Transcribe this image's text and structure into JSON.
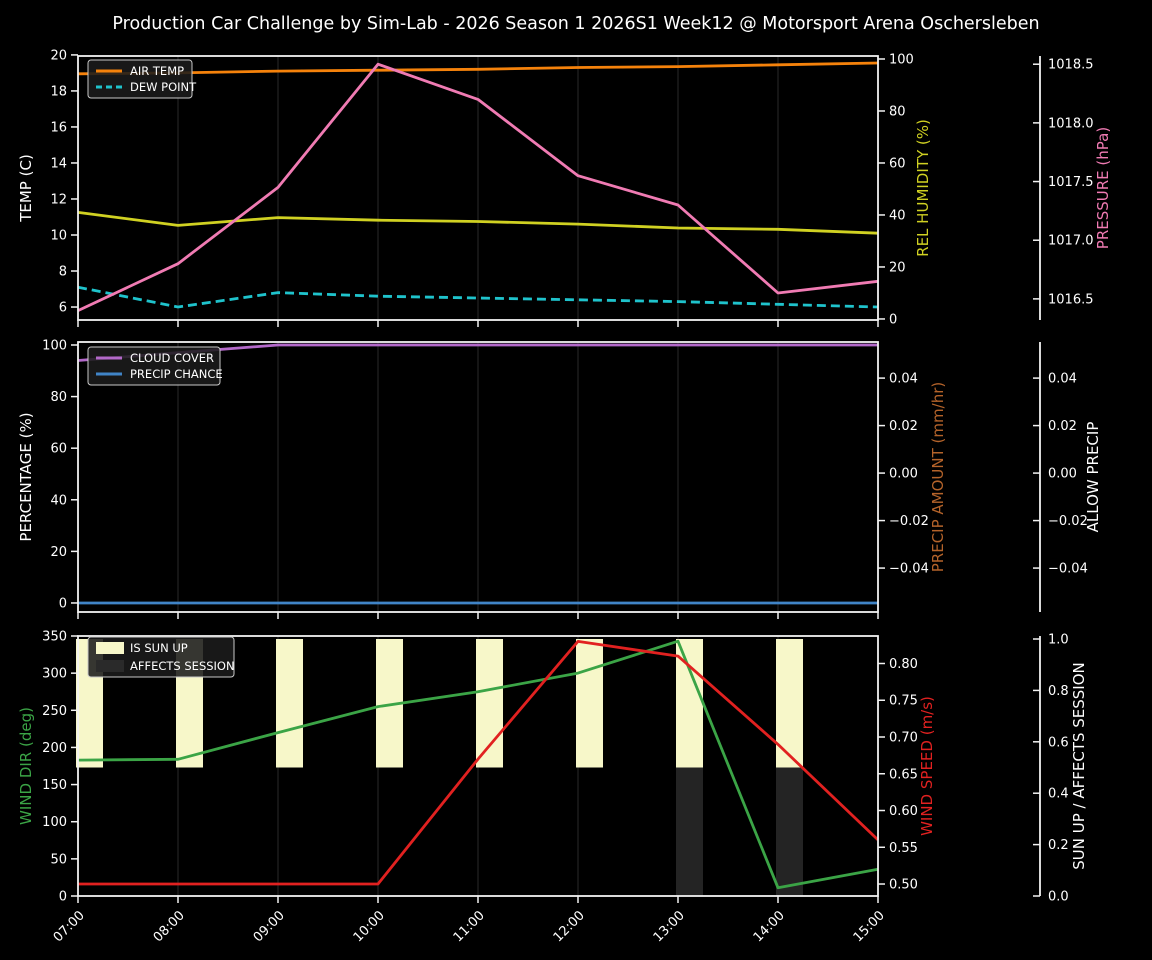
{
  "title": "Production Car Challenge by Sim-Lab - 2026 Season 1 2026S1 Week12 @ Motorsport Arena Oschersleben",
  "x_labels": [
    "07:00",
    "08:00",
    "09:00",
    "10:00",
    "11:00",
    "12:00",
    "13:00",
    "14:00",
    "15:00"
  ],
  "colors": {
    "background": "#000000",
    "text": "#ffffff",
    "grid": "#232323",
    "spine": "#f2f2f2",
    "air_temp": "#f5820b",
    "dew_point": "#1fc3cc",
    "rel_humidity": "#d0d122",
    "pressure": "#f07bb3",
    "cloud_cover": "#b369c9",
    "precip_chance": "#4084c7",
    "precip_amount": "#b4632a",
    "wind_dir": "#3ba446",
    "wind_speed": "#e12120",
    "sun_up_bar": "#f7f7c9",
    "affects_session_bar": "#242424"
  },
  "chart_data": [
    {
      "type": "line",
      "name": "temp-humidity-pressure",
      "categories": [
        "07:00",
        "08:00",
        "09:00",
        "10:00",
        "11:00",
        "12:00",
        "13:00",
        "14:00",
        "15:00"
      ],
      "series": [
        {
          "name": "AIR TEMP",
          "scale": "temp",
          "color": "#f5820b",
          "style": "solid",
          "values": [
            18.95,
            19.0,
            19.1,
            19.15,
            19.2,
            19.3,
            19.35,
            19.45,
            19.55
          ]
        },
        {
          "name": "DEW POINT",
          "scale": "temp",
          "color": "#1fc3cc",
          "style": "dashed",
          "values": [
            7.1,
            6.0,
            6.8,
            6.6,
            6.5,
            6.4,
            6.3,
            6.15,
            6.0
          ]
        },
        {
          "name": "REL HUMIDITY",
          "scale": "hum",
          "color": "#d0d122",
          "style": "solid",
          "values": [
            41,
            36,
            39,
            38,
            37.5,
            36.5,
            35,
            34.5,
            33
          ]
        },
        {
          "name": "PRESSURE",
          "scale": "press",
          "color": "#f07bb3",
          "style": "solid",
          "values": [
            1016.4,
            1016.8,
            1017.45,
            1018.5,
            1018.2,
            1017.55,
            1017.3,
            1016.55,
            1016.65
          ]
        }
      ],
      "axes": [
        {
          "scale": "temp",
          "side": "left",
          "label": "TEMP (C)",
          "label_color": "#ffffff",
          "ticks": [
            6,
            8,
            10,
            12,
            14,
            16,
            18,
            20
          ],
          "tick_labels": [
            "6",
            "8",
            "10",
            "12",
            "14",
            "16",
            "18",
            "20"
          ]
        },
        {
          "scale": "hum",
          "side": "right",
          "label": "REL HUMIDITY (%)",
          "label_color": "#d0d122",
          "ticks": [
            0,
            20,
            40,
            60,
            80,
            100
          ],
          "tick_labels": [
            "0",
            "20",
            "40",
            "60",
            "80",
            "100"
          ]
        },
        {
          "scale": "press",
          "side": "right2",
          "label": "PRESSURE (hPa)",
          "label_color": "#f07bb3",
          "ticks": [
            1016.5,
            1017.0,
            1017.5,
            1018.0,
            1018.5
          ],
          "tick_labels": [
            "1016.5",
            "1017.0",
            "1017.5",
            "1018.0",
            "1018.5"
          ]
        }
      ],
      "legend": [
        {
          "label": "AIR TEMP",
          "swatch": "line",
          "color": "#f5820b"
        },
        {
          "label": "DEW POINT",
          "swatch": "dashed-line",
          "color": "#1fc3cc"
        }
      ]
    },
    {
      "type": "line",
      "name": "cloud-precip",
      "categories": [
        "07:00",
        "08:00",
        "09:00",
        "10:00",
        "11:00",
        "12:00",
        "13:00",
        "14:00",
        "15:00"
      ],
      "series": [
        {
          "name": "CLOUD COVER",
          "scale": "pct",
          "color": "#b369c9",
          "style": "solid",
          "values": [
            94,
            97,
            100,
            100,
            100,
            100,
            100,
            100,
            100
          ]
        },
        {
          "name": "PRECIP CHANCE",
          "scale": "pct",
          "color": "#4084c7",
          "style": "solid",
          "values": [
            0,
            0,
            0,
            0,
            0,
            0,
            0,
            0,
            0
          ]
        }
      ],
      "axes": [
        {
          "scale": "pct",
          "side": "left",
          "label": "PERCENTAGE (%)",
          "label_color": "#ffffff",
          "ticks": [
            0,
            20,
            40,
            60,
            80,
            100
          ],
          "tick_labels": [
            "0",
            "20",
            "40",
            "60",
            "80",
            "100"
          ]
        },
        {
          "scale": "amt",
          "side": "right",
          "label": "PRECIP AMOUNT (mm/hr)",
          "label_color": "#b4632a",
          "ticks": [
            0.04,
            0.02,
            0.0,
            -0.02,
            -0.04
          ],
          "tick_labels": [
            "0.04",
            "0.02",
            "0.00",
            "−0.02",
            "−0.04"
          ]
        },
        {
          "scale": "amt",
          "side": "right2",
          "label": "ALLOW PRECIP",
          "label_color": "#ffffff",
          "ticks": [
            0.04,
            0.02,
            0.0,
            -0.02,
            -0.04
          ],
          "tick_labels": [
            "0.04",
            "0.02",
            "0.00",
            "−0.02",
            "−0.04"
          ]
        }
      ],
      "legend": [
        {
          "label": "CLOUD COVER",
          "swatch": "line",
          "color": "#b369c9"
        },
        {
          "label": "PRECIP CHANCE",
          "swatch": "line",
          "color": "#4084c7"
        }
      ]
    },
    {
      "type": "line-bar",
      "name": "wind-sun",
      "categories": [
        "07:00",
        "08:00",
        "09:00",
        "10:00",
        "11:00",
        "12:00",
        "13:00",
        "14:00",
        "15:00"
      ],
      "series": [
        {
          "name": "IS SUN UP",
          "type": "bar",
          "scale": "sun",
          "color": "#f7f7c9",
          "span": [
            0.5,
            1.0
          ],
          "bar_width_hours": 0.25,
          "values": [
            1,
            1,
            1,
            1,
            1,
            1,
            1,
            1,
            0
          ]
        },
        {
          "name": "AFFECTS SESSION",
          "type": "bar",
          "scale": "sun",
          "color": "#242424",
          "span": [
            0.0,
            0.5
          ],
          "bar_width_hours": 0.25,
          "values": [
            0,
            0,
            0,
            0,
            0,
            0,
            1,
            1,
            0
          ]
        },
        {
          "name": "WIND DIR",
          "type": "line",
          "scale": "deg",
          "color": "#3ba446",
          "style": "solid",
          "values": [
            183,
            184,
            220,
            255,
            275,
            300,
            343,
            11,
            36
          ]
        },
        {
          "name": "WIND SPEED",
          "type": "line",
          "scale": "spd",
          "color": "#e12120",
          "style": "solid",
          "values": [
            0.5,
            0.5,
            0.5,
            0.5,
            0.67,
            0.83,
            0.81,
            0.69,
            0.56
          ]
        }
      ],
      "axes": [
        {
          "scale": "deg",
          "side": "left",
          "label": "WIND DIR (deg)",
          "label_color": "#3ba446",
          "ticks": [
            0,
            50,
            100,
            150,
            200,
            250,
            300,
            350
          ],
          "tick_labels": [
            "0",
            "50",
            "100",
            "150",
            "200",
            "250",
            "300",
            "350"
          ]
        },
        {
          "scale": "spd",
          "side": "right",
          "label": "WIND SPEED (m/s)",
          "label_color": "#e12120",
          "ticks": [
            0.5,
            0.55,
            0.6,
            0.65,
            0.7,
            0.75,
            0.8
          ],
          "tick_labels": [
            "0.50",
            "0.55",
            "0.60",
            "0.65",
            "0.70",
            "0.75",
            "0.80"
          ]
        },
        {
          "scale": "sun",
          "side": "right2",
          "label": "SUN UP / AFFECTS SESSION",
          "label_color": "#ffffff",
          "ticks": [
            0.0,
            0.2,
            0.4,
            0.6,
            0.8,
            1.0
          ],
          "tick_labels": [
            "0.0",
            "0.2",
            "0.4",
            "0.6",
            "0.8",
            "1.0"
          ]
        }
      ],
      "legend": [
        {
          "label": "IS SUN UP",
          "swatch": "patch",
          "color": "#f7f7c9"
        },
        {
          "label": "AFFECTS SESSION",
          "swatch": "patch",
          "color": "#2a2a2a"
        }
      ]
    }
  ]
}
